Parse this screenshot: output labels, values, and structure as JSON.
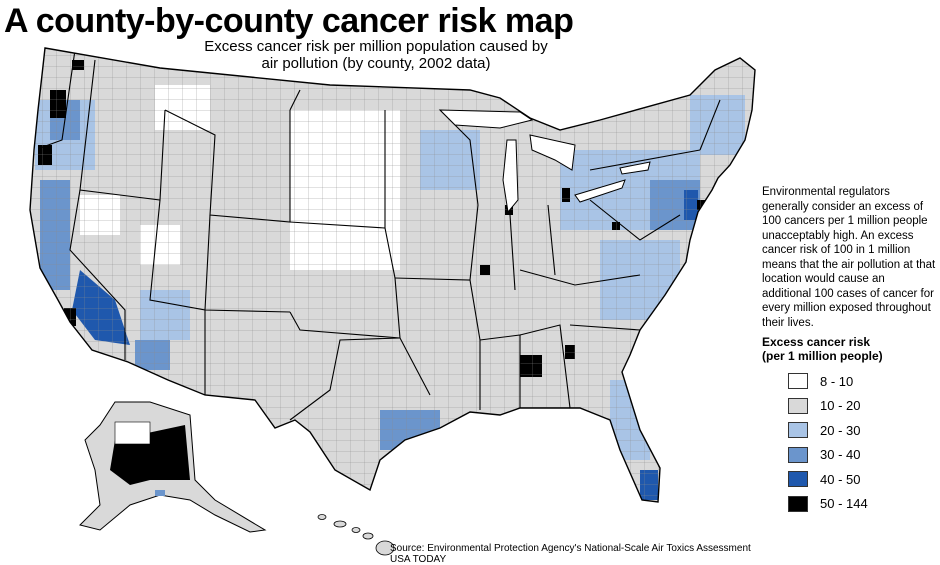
{
  "title": "A county-by-county cancer risk map",
  "subtitle_line1": "Excess cancer risk per million population caused by",
  "subtitle_line2": "air pollution (by county, 2002 data)",
  "note": "Environmental regulators generally consider an excess of 100 cancers per 1 million people unacceptably high. An excess cancer risk of 100 in 1 million means that the air pollution at that location would cause an additional 100 cases of cancer for every million exposed throughout their lives.",
  "legend": {
    "title_line1": "Excess cancer risk",
    "title_line2": "(per 1 million people)",
    "items": [
      {
        "label": "8 - 10",
        "color": "#ffffff"
      },
      {
        "label": "10 - 20",
        "color": "#d9d9d9"
      },
      {
        "label": "20 - 30",
        "color": "#a9c4e6"
      },
      {
        "label": "30 - 40",
        "color": "#6b95cc"
      },
      {
        "label": "40 - 50",
        "color": "#1f58ad"
      },
      {
        "label": "50 - 144",
        "color": "#000000"
      }
    ]
  },
  "source_line1": "Source: Environmental Protection Agency's National-Scale Air Toxics Assessment",
  "source_line2": "USA TODAY"
}
